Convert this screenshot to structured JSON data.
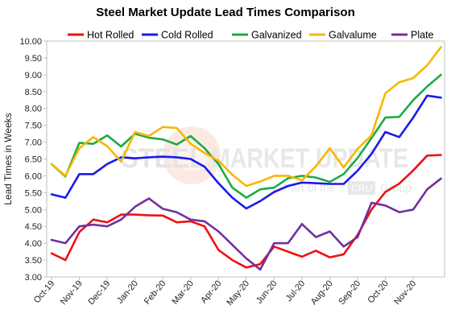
{
  "chart_data": {
    "type": "line",
    "title": "Steel Market Update Lead Times Comparison",
    "ylabel": "Lead Times in Weeks",
    "xlabel": "",
    "ylim": [
      3.0,
      10.0
    ],
    "ystep": 0.5,
    "grid": false,
    "legend_position": "top",
    "x_tick_labels": [
      "Oct-19",
      "Nov-19",
      "Dec-19",
      "Jan-20",
      "Feb-20",
      "Mar-20",
      "Apr-20",
      "May-20",
      "Jun-20",
      "Jul-20",
      "Aug-20",
      "Sep-20",
      "Oct-20",
      "Nov-20"
    ],
    "points_per_month": 2,
    "series": [
      {
        "name": "Hot Rolled",
        "color": "#ee1111",
        "values": [
          3.7,
          3.5,
          4.33,
          4.7,
          4.62,
          4.85,
          4.85,
          4.83,
          4.82,
          4.62,
          4.65,
          4.5,
          3.8,
          3.5,
          3.28,
          3.38,
          3.9,
          3.75,
          3.6,
          3.78,
          3.58,
          3.67,
          4.25,
          5.0,
          5.52,
          5.77,
          6.16,
          6.6,
          6.62
        ]
      },
      {
        "name": "Cold Rolled",
        "color": "#1a1aee",
        "values": [
          5.45,
          5.35,
          6.05,
          6.05,
          6.35,
          6.55,
          6.52,
          6.55,
          6.57,
          6.55,
          6.5,
          6.27,
          5.78,
          5.35,
          5.03,
          5.25,
          5.52,
          5.7,
          5.8,
          5.78,
          5.76,
          5.76,
          6.15,
          6.65,
          7.3,
          7.15,
          7.73,
          8.38,
          8.32
        ]
      },
      {
        "name": "Galvanized",
        "color": "#1aab45",
        "values": [
          6.35,
          5.98,
          6.98,
          6.95,
          7.2,
          6.87,
          7.25,
          7.13,
          7.08,
          6.93,
          7.18,
          6.82,
          6.35,
          5.65,
          5.35,
          5.6,
          5.65,
          5.93,
          6.0,
          5.95,
          5.82,
          6.05,
          6.53,
          7.12,
          7.73,
          7.75,
          8.25,
          8.65,
          9.0
        ]
      },
      {
        "name": "Galvalume",
        "color": "#f5b800",
        "values": [
          6.35,
          6.0,
          6.82,
          7.15,
          6.88,
          6.42,
          7.3,
          7.18,
          7.45,
          7.42,
          6.95,
          6.68,
          6.45,
          6.03,
          5.7,
          5.83,
          6.0,
          6.0,
          5.87,
          6.28,
          6.82,
          6.25,
          6.8,
          7.2,
          8.45,
          8.78,
          8.9,
          9.28,
          9.82
        ]
      },
      {
        "name": "Plate",
        "color": "#7030a0",
        "values": [
          4.1,
          4.0,
          4.5,
          4.55,
          4.5,
          4.7,
          5.08,
          5.33,
          5.02,
          4.92,
          4.7,
          4.65,
          4.35,
          3.95,
          3.55,
          3.22,
          4.0,
          4.0,
          4.57,
          4.18,
          4.35,
          3.9,
          4.18,
          5.2,
          5.12,
          4.92,
          5.0,
          5.6,
          5.92
        ]
      }
    ]
  },
  "watermark": {
    "main_left": "STEEL",
    "main_right": "MARKET UPDATE",
    "sub_left": "Part of the",
    "sub_box": "CRU",
    "sub_right": "Group"
  }
}
